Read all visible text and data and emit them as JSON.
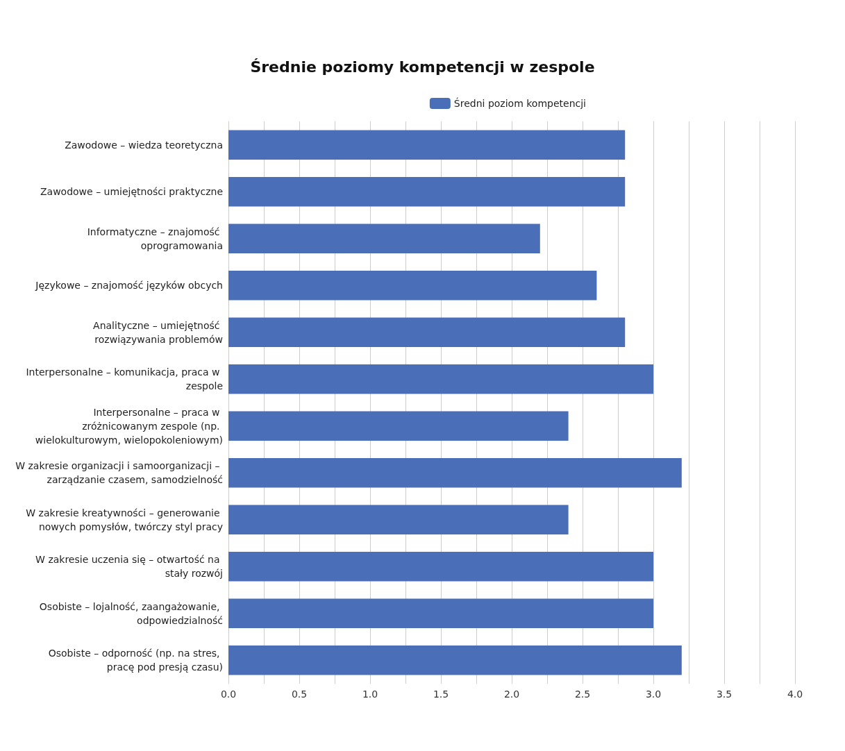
{
  "chart_data": {
    "type": "bar",
    "orientation": "horizontal",
    "title": "Średnie poziomy kompetencji w zespole",
    "categories": [
      "Zawodowe – wiedza teoretyczna",
      "Zawodowe – umiejętności praktyczne",
      "Informatyczne – znajomość oprogramowania",
      "Językowe – znajomość języków obcych",
      "Analityczne – umiejętność rozwiązywania problemów",
      "Interpersonalne – komunikacja, praca w zespole",
      "Interpersonalne – praca w zróżnicowanym zespole (np. wielokulturowym, wielopokoleniowym)",
      "W zakresie organizacji i samoorganizacji – zarządzanie czasem, samodzielność",
      "W zakresie kreatywności – generowanie nowych pomysłów, twórczy styl pracy",
      "W zakresie uczenia się – otwartość na stały rozwój",
      "Osobiste – lojalność, zaangażowanie, odpowiedzialność",
      "Osobiste – odporność (np. na stres, pracę pod presją czasu)"
    ],
    "series": [
      {
        "name": "Średni poziom kompetencji",
        "color": "#4a6fb8",
        "values": [
          2.8,
          2.8,
          2.2,
          2.6,
          2.8,
          3.0,
          2.4,
          3.2,
          2.4,
          3.0,
          3.0,
          3.2
        ]
      }
    ],
    "xlim": [
      0,
      4
    ],
    "xticks": [
      {
        "value": 0,
        "label": "0.0"
      },
      {
        "value": 0.25,
        "label": null
      },
      {
        "value": 0.5,
        "label": "0.5"
      },
      {
        "value": 0.75,
        "label": null
      },
      {
        "value": 1,
        "label": "1.0"
      },
      {
        "value": 1.25,
        "label": null
      },
      {
        "value": 1.5,
        "label": "1.5"
      },
      {
        "value": 1.75,
        "label": null
      },
      {
        "value": 2,
        "label": "2.0"
      },
      {
        "value": 2.25,
        "label": null
      },
      {
        "value": 2.5,
        "label": "2.5"
      },
      {
        "value": 2.75,
        "label": null
      },
      {
        "value": 3,
        "label": "3.0"
      },
      {
        "value": 3.25,
        "label": null
      },
      {
        "value": 3.5,
        "label": "3.5"
      },
      {
        "value": 3.75,
        "label": null
      },
      {
        "value": 4,
        "label": "4.0"
      }
    ],
    "grid": "x",
    "legend": "top right"
  }
}
